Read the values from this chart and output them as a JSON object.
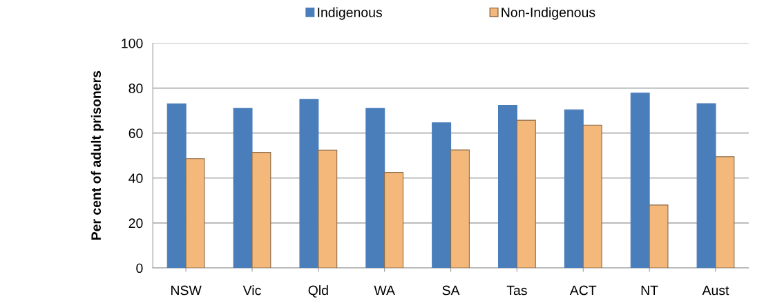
{
  "chart_data": {
    "type": "bar",
    "ylabel": "Per cent of adult prisoners",
    "categories": [
      "NSW",
      "Vic",
      "Qld",
      "WA",
      "SA",
      "Tas",
      "ACT",
      "NT",
      "Aust"
    ],
    "series": [
      {
        "name": "Indigenous",
        "color": "#4a7ebb",
        "values": [
          73,
          71,
          75,
          71,
          64.6,
          72.3,
          70.3,
          77.8,
          73.1
        ]
      },
      {
        "name": "Non-Indigenous",
        "color": "#f4b97a",
        "values": [
          48.6,
          51.4,
          52.4,
          42.5,
          52.5,
          65.7,
          63.5,
          28,
          49.5
        ]
      }
    ],
    "ylim": [
      0,
      100
    ],
    "yticks": [
      0,
      20,
      40,
      60,
      80,
      100
    ],
    "grid": "y",
    "legend": "top"
  }
}
